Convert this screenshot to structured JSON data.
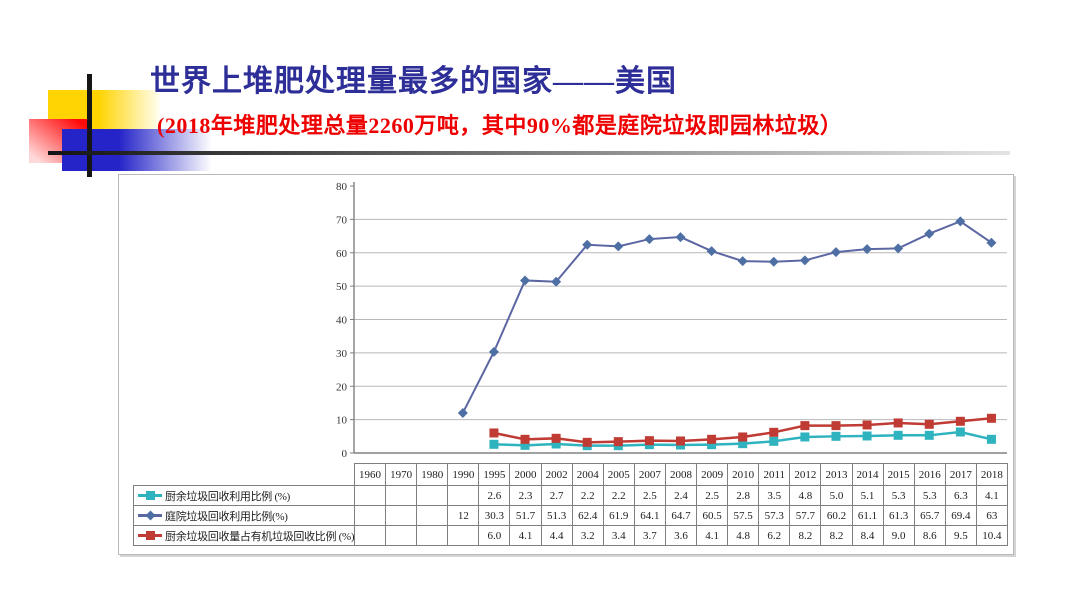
{
  "slide": {
    "title": "世界上堆肥处理量最多的国家——美国",
    "subtitle": "(2018年堆肥处理总量2260万吨，其中90%都是庭院垃圾即园林垃圾）",
    "title_color": "#2e2e99",
    "subtitle_color": "#ee0000"
  },
  "chart_data": {
    "type": "line",
    "title": "",
    "xlabel": "",
    "ylabel": "",
    "ylim": [
      0,
      80
    ],
    "ytick_step": 10,
    "grid": true,
    "legend_position": "table-left",
    "categories": [
      "1960",
      "1970",
      "1980",
      "1990",
      "1995",
      "2000",
      "2002",
      "2004",
      "2005",
      "2007",
      "2008",
      "2009",
      "2010",
      "2011",
      "2012",
      "2013",
      "2014",
      "2015",
      "2016",
      "2017",
      "2018"
    ],
    "series": [
      {
        "name": "厨余垃圾回收利用比例 (%)",
        "marker": "square",
        "color": "#2fb3bf",
        "line_color": "#2fb3bf",
        "values": [
          null,
          null,
          null,
          null,
          2.6,
          2.3,
          2.7,
          2.2,
          2.2,
          2.5,
          2.4,
          2.5,
          2.8,
          3.5,
          4.8,
          5.0,
          5.1,
          5.3,
          5.3,
          6.3,
          4.1
        ],
        "value_labels": [
          "",
          "",
          "",
          "",
          "2.6",
          "2.3",
          "2.7",
          "2.2",
          "2.2",
          "2.5",
          "2.4",
          "2.5",
          "2.8",
          "3.5",
          "4.8",
          "5.0",
          "5.1",
          "5.3",
          "5.3",
          "6.3",
          "4.1"
        ]
      },
      {
        "name": "庭院垃圾回收利用比例(%)",
        "marker": "diamond",
        "color": "#4e6fa4",
        "line_color": "#5b66a3",
        "values": [
          null,
          null,
          null,
          12,
          30.3,
          51.7,
          51.3,
          62.4,
          61.9,
          64.1,
          64.7,
          60.5,
          57.5,
          57.3,
          57.7,
          60.2,
          61.1,
          61.3,
          65.7,
          69.4,
          63
        ],
        "value_labels": [
          "",
          "",
          "",
          "12",
          "30.3",
          "51.7",
          "51.3",
          "62.4",
          "61.9",
          "64.1",
          "64.7",
          "60.5",
          "57.5",
          "57.3",
          "57.7",
          "60.2",
          "61.1",
          "61.3",
          "65.7",
          "69.4",
          "63"
        ]
      },
      {
        "name": "厨余垃圾回收量占有机垃圾回收比例 (%)",
        "marker": "square",
        "color": "#bf3b33",
        "line_color": "#bf3b33",
        "values": [
          null,
          null,
          null,
          null,
          6.0,
          4.1,
          4.4,
          3.2,
          3.4,
          3.7,
          3.6,
          4.1,
          4.8,
          6.2,
          8.2,
          8.2,
          8.4,
          9.0,
          8.6,
          9.5,
          10.4
        ],
        "value_labels": [
          "",
          "",
          "",
          "",
          "6.0",
          "4.1",
          "4.4",
          "3.2",
          "3.4",
          "3.7",
          "3.6",
          "4.1",
          "4.8",
          "6.2",
          "8.2",
          "8.2",
          "8.4",
          "9.0",
          "8.6",
          "9.5",
          "10.4"
        ]
      }
    ],
    "axis_color": "#808080",
    "gridline_color": "#b8b8b8",
    "tick_label_color": "#333333"
  }
}
